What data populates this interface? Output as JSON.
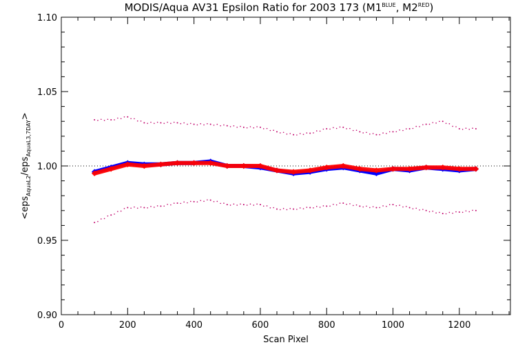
{
  "chart_data": {
    "type": "scatter",
    "title": {
      "main": "MODIS/Aqua AV31 Epsilon Ratio for 2003 173 (M1",
      "sup1": "BLUE",
      "mid": ", M2",
      "sup2": "RED",
      "end": ")"
    },
    "xlabel": "Scan Pixel",
    "ylabel": {
      "open": "<eps",
      "sub1": "AquaL2",
      "slash": "/eps",
      "sub2": "AquaL3,7DAY",
      "close": ">"
    },
    "xlim": [
      0,
      1354
    ],
    "ylim": [
      0.9,
      1.1
    ],
    "xticks": [
      0,
      200,
      400,
      600,
      800,
      1000,
      1200
    ],
    "xtick_labels": [
      "0",
      "200",
      "400",
      "600",
      "800",
      "1000",
      "1200"
    ],
    "yticks": [
      0.9,
      0.95,
      1.0,
      1.05,
      1.1
    ],
    "ytick_labels": [
      "0.90",
      "0.95",
      "1.00",
      "1.05",
      "1.10"
    ],
    "reference_line": 1.0,
    "grid": false,
    "series": [
      {
        "color": "#0000ff",
        "marker": "diamond",
        "x": [
          100,
          150,
          200,
          250,
          300,
          350,
          400,
          450,
          500,
          550,
          600,
          650,
          700,
          750,
          800,
          850,
          900,
          950,
          1000,
          1050,
          1100,
          1150,
          1200,
          1250
        ],
        "y": [
          0.996,
          0.999,
          1.002,
          1.001,
          1.001,
          1.002,
          1.002,
          1.003,
          1.0,
          1.0,
          0.999,
          0.997,
          0.995,
          0.996,
          0.998,
          0.999,
          0.997,
          0.995,
          0.998,
          0.997,
          0.999,
          0.998,
          0.997,
          0.998
        ]
      },
      {
        "color": "#ff0000",
        "marker": "diamond",
        "x": [
          100,
          150,
          200,
          250,
          300,
          350,
          400,
          450,
          500,
          550,
          600,
          650,
          700,
          750,
          800,
          850,
          900,
          950,
          1000,
          1050,
          1100,
          1150,
          1200,
          1250
        ],
        "y": [
          0.995,
          0.998,
          1.001,
          1.0,
          1.001,
          1.002,
          1.002,
          1.002,
          1.0,
          1.0,
          1.0,
          0.997,
          0.996,
          0.997,
          0.999,
          1.0,
          0.998,
          0.997,
          0.998,
          0.998,
          0.999,
          0.999,
          0.998,
          0.998
        ]
      },
      {
        "color": "#c0006a",
        "marker": "dot",
        "x": [
          100,
          150,
          200,
          250,
          300,
          350,
          400,
          450,
          500,
          550,
          600,
          650,
          700,
          750,
          800,
          850,
          900,
          950,
          1000,
          1050,
          1100,
          1150,
          1200,
          1250
        ],
        "y": [
          1.031,
          1.031,
          1.033,
          1.029,
          1.029,
          1.029,
          1.028,
          1.028,
          1.027,
          1.026,
          1.026,
          1.023,
          1.021,
          1.022,
          1.025,
          1.026,
          1.023,
          1.021,
          1.023,
          1.025,
          1.028,
          1.03,
          1.025,
          1.025
        ]
      },
      {
        "color": "#c0006a",
        "marker": "dot",
        "x": [
          100,
          150,
          200,
          250,
          300,
          350,
          400,
          450,
          500,
          550,
          600,
          650,
          700,
          750,
          800,
          850,
          900,
          950,
          1000,
          1050,
          1100,
          1150,
          1200,
          1250
        ],
        "y": [
          0.962,
          0.967,
          0.972,
          0.972,
          0.973,
          0.975,
          0.976,
          0.977,
          0.974,
          0.974,
          0.974,
          0.971,
          0.971,
          0.972,
          0.973,
          0.975,
          0.973,
          0.972,
          0.974,
          0.972,
          0.97,
          0.968,
          0.969,
          0.97
        ]
      }
    ]
  }
}
